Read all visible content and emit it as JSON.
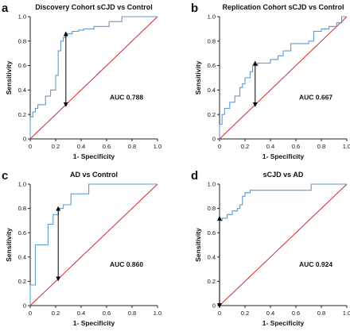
{
  "chart_data": [
    {
      "panel": "a",
      "type": "line",
      "title": "Discovery Cohort sCJD vs Control",
      "xlabel": "1- Specificity",
      "ylabel": "Sensitivity",
      "auc_text": "AUC 0.788",
      "xlim": [
        0,
        1
      ],
      "ylim": [
        0,
        1
      ],
      "xticks": [
        "0",
        "0.2",
        "0.4",
        "0.6",
        "0.8",
        "1.0"
      ],
      "yticks": [
        "0",
        "0.2",
        "0.4",
        "0.6",
        "0.8",
        "1.0"
      ],
      "colors": {
        "roc": "#5b9bd5",
        "reference": "#d62728",
        "arrow": "#000000"
      },
      "roc": [
        [
          0,
          0
        ],
        [
          0,
          0.18
        ],
        [
          0.02,
          0.18
        ],
        [
          0.02,
          0.22
        ],
        [
          0.04,
          0.22
        ],
        [
          0.04,
          0.25
        ],
        [
          0.06,
          0.25
        ],
        [
          0.06,
          0.28
        ],
        [
          0.12,
          0.28
        ],
        [
          0.12,
          0.35
        ],
        [
          0.16,
          0.35
        ],
        [
          0.16,
          0.4
        ],
        [
          0.2,
          0.4
        ],
        [
          0.2,
          0.52
        ],
        [
          0.22,
          0.52
        ],
        [
          0.22,
          0.72
        ],
        [
          0.24,
          0.72
        ],
        [
          0.24,
          0.8
        ],
        [
          0.26,
          0.8
        ],
        [
          0.26,
          0.83
        ],
        [
          0.28,
          0.83
        ],
        [
          0.28,
          0.86
        ],
        [
          0.33,
          0.86
        ],
        [
          0.33,
          0.88
        ],
        [
          0.38,
          0.88
        ],
        [
          0.38,
          0.89
        ],
        [
          0.42,
          0.89
        ],
        [
          0.42,
          0.9
        ],
        [
          0.5,
          0.9
        ],
        [
          0.5,
          0.92
        ],
        [
          0.62,
          0.92
        ],
        [
          0.62,
          0.96
        ],
        [
          0.72,
          0.96
        ],
        [
          0.72,
          1.0
        ],
        [
          1.0,
          1.0
        ]
      ],
      "reference": [
        [
          0,
          0
        ],
        [
          1,
          1
        ]
      ],
      "youden_arrow": {
        "x": 0.28,
        "y_from": 0.86,
        "y_to": 0.28
      }
    },
    {
      "panel": "b",
      "type": "line",
      "title": "Replication Cohort sCJD vs Control",
      "xlabel": "1- Specificity",
      "ylabel": "Sensitivity",
      "auc_text": "AUC 0.667",
      "xlim": [
        0,
        1
      ],
      "ylim": [
        0,
        1
      ],
      "xticks": [
        "0",
        "0.2",
        "0.4",
        "0.6",
        "0.8",
        "1.0"
      ],
      "yticks": [
        "0",
        "0.2",
        "0.4",
        "0.6",
        "0.8",
        "1.0"
      ],
      "colors": {
        "roc": "#5b9bd5",
        "reference": "#d62728",
        "arrow": "#000000"
      },
      "roc": [
        [
          0,
          0
        ],
        [
          0,
          0.12
        ],
        [
          0.02,
          0.12
        ],
        [
          0.02,
          0.2
        ],
        [
          0.04,
          0.2
        ],
        [
          0.04,
          0.25
        ],
        [
          0.08,
          0.25
        ],
        [
          0.08,
          0.3
        ],
        [
          0.12,
          0.3
        ],
        [
          0.12,
          0.35
        ],
        [
          0.16,
          0.35
        ],
        [
          0.16,
          0.42
        ],
        [
          0.18,
          0.42
        ],
        [
          0.18,
          0.45
        ],
        [
          0.2,
          0.45
        ],
        [
          0.2,
          0.5
        ],
        [
          0.24,
          0.5
        ],
        [
          0.24,
          0.55
        ],
        [
          0.26,
          0.55
        ],
        [
          0.26,
          0.6
        ],
        [
          0.3,
          0.6
        ],
        [
          0.3,
          0.62
        ],
        [
          0.4,
          0.62
        ],
        [
          0.4,
          0.65
        ],
        [
          0.46,
          0.65
        ],
        [
          0.46,
          0.68
        ],
        [
          0.5,
          0.68
        ],
        [
          0.5,
          0.72
        ],
        [
          0.56,
          0.72
        ],
        [
          0.56,
          0.78
        ],
        [
          0.7,
          0.78
        ],
        [
          0.7,
          0.8
        ],
        [
          0.74,
          0.8
        ],
        [
          0.74,
          0.88
        ],
        [
          0.8,
          0.88
        ],
        [
          0.8,
          0.9
        ],
        [
          0.86,
          0.9
        ],
        [
          0.86,
          0.92
        ],
        [
          0.92,
          0.92
        ],
        [
          0.92,
          0.95
        ],
        [
          0.96,
          0.95
        ],
        [
          0.96,
          1.0
        ],
        [
          1.0,
          1.0
        ]
      ],
      "reference": [
        [
          0,
          0
        ],
        [
          1,
          1
        ]
      ],
      "youden_arrow": {
        "x": 0.28,
        "y_from": 0.62,
        "y_to": 0.28
      }
    },
    {
      "panel": "c",
      "type": "line",
      "title": "AD vs Control",
      "xlabel": "1- Specificity",
      "ylabel": "Sensitivity",
      "auc_text": "AUC 0.860",
      "xlim": [
        0,
        1
      ],
      "ylim": [
        0,
        1
      ],
      "xticks": [
        "0",
        "0.2",
        "0.4",
        "0.6",
        "0.8",
        "1.0"
      ],
      "yticks": [
        "0",
        "0.2",
        "0.4",
        "0.6",
        "0.8",
        "1.0"
      ],
      "colors": {
        "roc": "#5b9bd5",
        "reference": "#d62728",
        "arrow": "#000000"
      },
      "roc": [
        [
          0,
          0
        ],
        [
          0,
          0.17
        ],
        [
          0.04,
          0.17
        ],
        [
          0.04,
          0.5
        ],
        [
          0.14,
          0.5
        ],
        [
          0.14,
          0.67
        ],
        [
          0.18,
          0.67
        ],
        [
          0.18,
          0.75
        ],
        [
          0.22,
          0.75
        ],
        [
          0.22,
          0.8
        ],
        [
          0.26,
          0.8
        ],
        [
          0.26,
          0.83
        ],
        [
          0.32,
          0.83
        ],
        [
          0.32,
          0.92
        ],
        [
          0.46,
          0.92
        ],
        [
          0.46,
          1.0
        ],
        [
          1.0,
          1.0
        ]
      ],
      "reference": [
        [
          0,
          0
        ],
        [
          1,
          1
        ]
      ],
      "youden_arrow": {
        "x": 0.22,
        "y_from": 0.8,
        "y_to": 0.22
      }
    },
    {
      "panel": "d",
      "type": "line",
      "title": "sCJD vs AD",
      "xlabel": "1- Specificity",
      "ylabel": "Sensitivity",
      "auc_text": "AUC 0.924",
      "xlim": [
        0,
        1
      ],
      "ylim": [
        0,
        1
      ],
      "xticks": [
        "0",
        "0.2",
        "0.4",
        "0.6",
        "0.8",
        "1.0"
      ],
      "yticks": [
        "0",
        "0.2",
        "0.4",
        "0.6",
        "0.8",
        "1.0"
      ],
      "colors": {
        "roc": "#5b9bd5",
        "reference": "#d62728",
        "arrow": "#000000"
      },
      "roc": [
        [
          0,
          0
        ],
        [
          0,
          0.7
        ],
        [
          0.02,
          0.7
        ],
        [
          0.02,
          0.72
        ],
        [
          0.06,
          0.72
        ],
        [
          0.06,
          0.75
        ],
        [
          0.1,
          0.75
        ],
        [
          0.1,
          0.78
        ],
        [
          0.14,
          0.78
        ],
        [
          0.14,
          0.8
        ],
        [
          0.16,
          0.8
        ],
        [
          0.16,
          0.83
        ],
        [
          0.18,
          0.83
        ],
        [
          0.18,
          0.9
        ],
        [
          0.2,
          0.9
        ],
        [
          0.2,
          0.93
        ],
        [
          0.24,
          0.93
        ],
        [
          0.24,
          0.95
        ],
        [
          0.72,
          0.95
        ],
        [
          0.72,
          1.0
        ],
        [
          1.0,
          1.0
        ]
      ],
      "reference": [
        [
          0,
          0
        ],
        [
          1,
          1
        ]
      ],
      "youden_arrow": {
        "x": 0.0,
        "y_from": 0.72,
        "y_to": 0.0
      }
    }
  ]
}
